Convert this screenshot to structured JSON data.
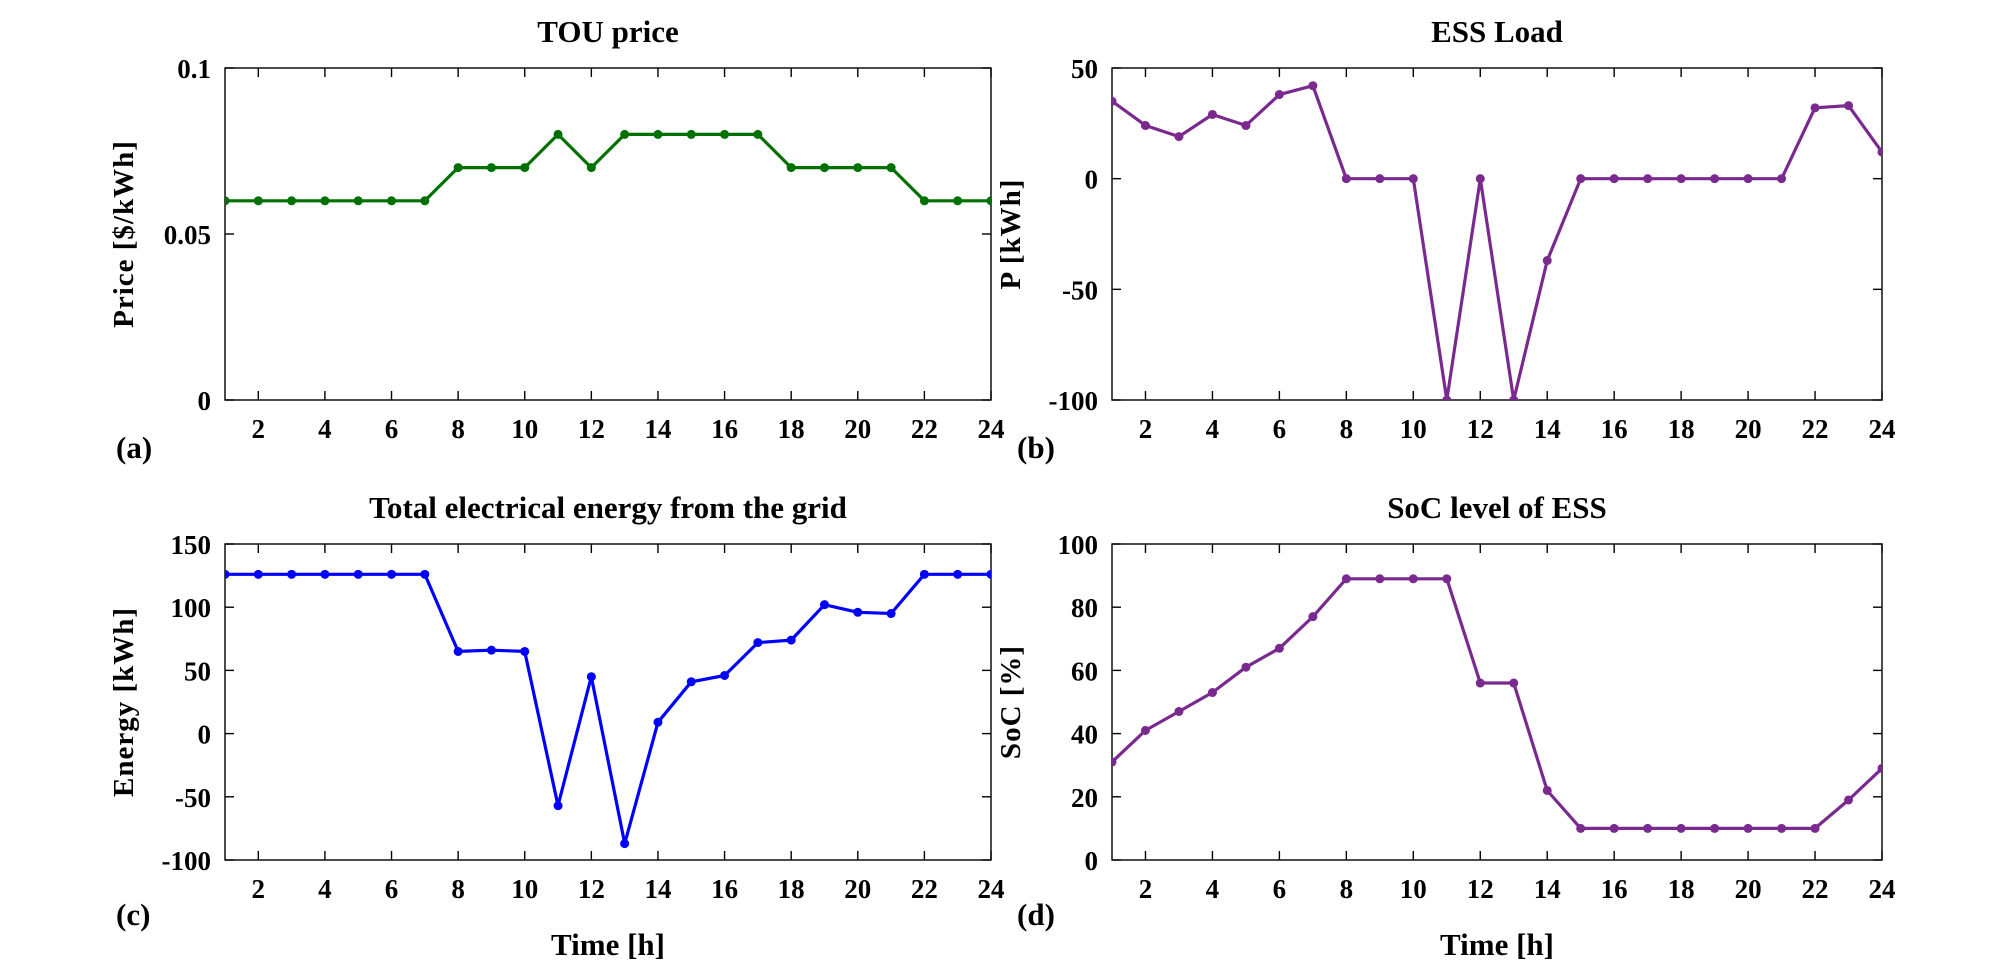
{
  "chart_data": [
    {
      "type": "line",
      "panel_label": "(a)",
      "title": "TOU price",
      "xlabel": "",
      "ylabel": "Price [$/kWh]",
      "color": "#007000",
      "x": [
        1,
        2,
        3,
        4,
        5,
        6,
        7,
        8,
        9,
        10,
        11,
        12,
        13,
        14,
        15,
        16,
        17,
        18,
        19,
        20,
        21,
        22,
        23,
        24
      ],
      "values": [
        0.06,
        0.06,
        0.06,
        0.06,
        0.06,
        0.06,
        0.06,
        0.07,
        0.07,
        0.07,
        0.08,
        0.07,
        0.08,
        0.08,
        0.08,
        0.08,
        0.08,
        0.07,
        0.07,
        0.07,
        0.07,
        0.06,
        0.06,
        0.06
      ],
      "xlim": [
        1,
        24
      ],
      "ylim": [
        0,
        0.1
      ],
      "xticks": [
        "2",
        "4",
        "6",
        "8",
        "10",
        "12",
        "14",
        "16",
        "18",
        "20",
        "22",
        "24"
      ],
      "yticks": [
        "0",
        "0.05",
        "0.1"
      ]
    },
    {
      "type": "line",
      "panel_label": "(b)",
      "title": "ESS Load",
      "xlabel": "",
      "ylabel": "P [kWh]",
      "color": "#7a2a8e",
      "x": [
        1,
        2,
        3,
        4,
        5,
        6,
        7,
        8,
        9,
        10,
        11,
        12,
        13,
        14,
        15,
        16,
        17,
        18,
        19,
        20,
        21,
        22,
        23,
        24
      ],
      "values": [
        35,
        24,
        19,
        29,
        24,
        38,
        42,
        0,
        0,
        0,
        -100,
        0,
        -100,
        -37,
        0,
        0,
        0,
        0,
        0,
        0,
        0,
        32,
        33,
        12
      ],
      "xlim": [
        1,
        24
      ],
      "ylim": [
        -100,
        50
      ],
      "xticks": [
        "2",
        "4",
        "6",
        "8",
        "10",
        "12",
        "14",
        "16",
        "18",
        "20",
        "22",
        "24"
      ],
      "yticks": [
        "-100",
        "-50",
        "0",
        "50"
      ]
    },
    {
      "type": "line",
      "panel_label": "(c)",
      "title": "Total electrical energy from the grid",
      "xlabel": "Time [h]",
      "ylabel": "Energy [kWh]",
      "color": "#0000ff",
      "x": [
        1,
        2,
        3,
        4,
        5,
        6,
        7,
        8,
        9,
        10,
        11,
        12,
        13,
        14,
        15,
        16,
        17,
        18,
        19,
        20,
        21,
        22,
        23,
        24
      ],
      "values": [
        126,
        126,
        126,
        126,
        126,
        126,
        126,
        65,
        66,
        65,
        -57,
        45,
        -87,
        9,
        41,
        46,
        72,
        74,
        102,
        96,
        95,
        126,
        126,
        126
      ],
      "xlim": [
        1,
        24
      ],
      "ylim": [
        -100,
        150
      ],
      "xticks": [
        "2",
        "4",
        "6",
        "8",
        "10",
        "12",
        "14",
        "16",
        "18",
        "20",
        "22",
        "24"
      ],
      "yticks": [
        "-100",
        "-50",
        "0",
        "50",
        "100",
        "150"
      ]
    },
    {
      "type": "line",
      "panel_label": "(d)",
      "title": "SoC level of ESS",
      "xlabel": "Time [h]",
      "ylabel": "SoC [%]",
      "color": "#7a2a8e",
      "x": [
        1,
        2,
        3,
        4,
        5,
        6,
        7,
        8,
        9,
        10,
        11,
        12,
        13,
        14,
        15,
        16,
        17,
        18,
        19,
        20,
        21,
        22,
        23,
        24
      ],
      "values": [
        31,
        41,
        47,
        53,
        61,
        67,
        77,
        89,
        89,
        89,
        89,
        56,
        56,
        22,
        10,
        10,
        10,
        10,
        10,
        10,
        10,
        10,
        19,
        29
      ],
      "xlim": [
        1,
        24
      ],
      "ylim": [
        0,
        100
      ],
      "xticks": [
        "2",
        "4",
        "6",
        "8",
        "10",
        "12",
        "14",
        "16",
        "18",
        "20",
        "22",
        "24"
      ],
      "yticks": [
        "0",
        "20",
        "40",
        "60",
        "80",
        "100"
      ]
    }
  ]
}
